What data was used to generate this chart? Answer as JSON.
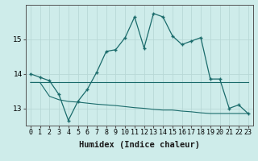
{
  "xlabel": "Humidex (Indice chaleur)",
  "ylabel": "",
  "bg_color": "#ceecea",
  "line_color": "#1a6b6b",
  "grid_color": "#b8d8d6",
  "x_values": [
    0,
    1,
    2,
    3,
    4,
    5,
    6,
    7,
    8,
    9,
    10,
    11,
    12,
    13,
    14,
    15,
    16,
    17,
    18,
    19,
    20,
    21,
    22,
    23
  ],
  "line_main": [
    14.0,
    13.9,
    13.8,
    13.4,
    12.65,
    13.2,
    13.55,
    14.05,
    14.65,
    14.7,
    15.05,
    15.65,
    14.75,
    15.75,
    15.65,
    15.1,
    14.85,
    14.95,
    15.05,
    13.85,
    13.85,
    13.0,
    13.1,
    12.85
  ],
  "line_upper": [
    13.75,
    13.75,
    13.75,
    13.75,
    13.75,
    13.75,
    13.75,
    13.75,
    13.75,
    13.75,
    13.75,
    13.75,
    13.75,
    13.75,
    13.75,
    13.75,
    13.75,
    13.75,
    13.75,
    13.75,
    13.75,
    13.75,
    13.75,
    13.75
  ],
  "line_lower": [
    13.75,
    13.75,
    13.35,
    13.25,
    13.2,
    13.18,
    13.15,
    13.12,
    13.1,
    13.08,
    13.05,
    13.02,
    13.0,
    12.97,
    12.95,
    12.95,
    12.92,
    12.9,
    12.87,
    12.85,
    12.85,
    12.85,
    12.85,
    12.85
  ],
  "ylim": [
    12.5,
    16.0
  ],
  "yticks": [
    13,
    14,
    15
  ],
  "xlim": [
    -0.5,
    23.5
  ],
  "tick_fontsize": 6.0,
  "xlabel_fontsize": 7.5
}
